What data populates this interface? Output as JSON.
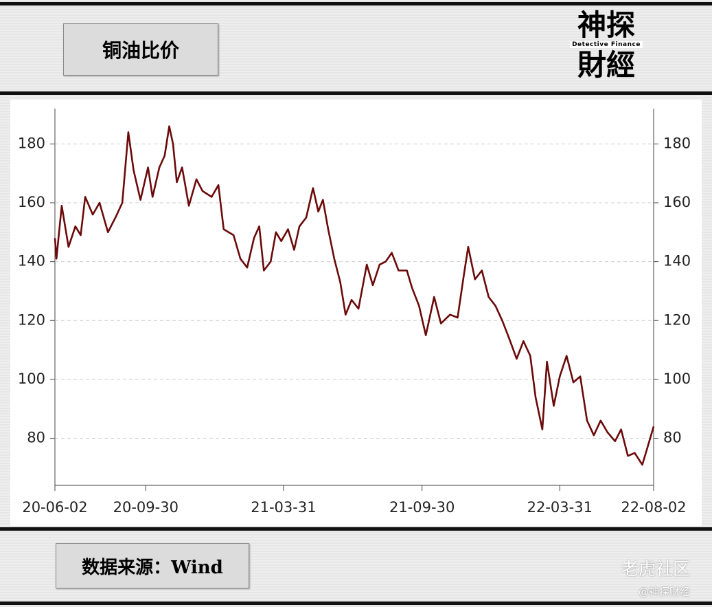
{
  "header": {
    "title": "铜油比价"
  },
  "logo": {
    "top": "神探",
    "bottom": "財經",
    "subtitle": "Detective Finance"
  },
  "chart_data": {
    "type": "line",
    "x": [
      "20-06-02",
      "20-06-04",
      "20-06-11",
      "20-06-20",
      "20-06-29",
      "20-07-06",
      "20-07-12",
      "20-07-22",
      "20-07-31",
      "20-08-11",
      "20-08-21",
      "20-08-30",
      "20-09-07",
      "20-09-14",
      "20-09-23",
      "20-10-03",
      "20-10-09",
      "20-10-18",
      "20-10-25",
      "20-10-31",
      "20-11-05",
      "20-11-10",
      "20-11-17",
      "20-11-26",
      "20-12-06",
      "20-12-14",
      "20-12-26",
      "21-01-04",
      "21-01-11",
      "21-01-24",
      "21-02-02",
      "21-02-11",
      "21-02-20",
      "21-02-27",
      "21-03-05",
      "21-03-14",
      "21-03-21",
      "21-03-28",
      "21-04-06",
      "21-04-14",
      "21-04-21",
      "21-04-30",
      "21-05-09",
      "21-05-16",
      "21-05-22",
      "21-05-29",
      "21-06-06",
      "21-06-14",
      "21-06-21",
      "21-06-29",
      "21-07-08",
      "21-07-19",
      "21-07-27",
      "21-08-05",
      "21-08-13",
      "21-08-21",
      "21-08-30",
      "21-09-10",
      "21-09-17",
      "21-09-26",
      "21-10-05",
      "21-10-16",
      "21-10-25",
      "21-11-06",
      "21-11-16",
      "21-11-24",
      "21-11-30",
      "21-12-09",
      "21-12-18",
      "21-12-27",
      "22-01-05",
      "22-01-14",
      "22-01-23",
      "22-02-02",
      "22-02-11",
      "22-02-20",
      "22-02-27",
      "22-03-08",
      "22-03-14",
      "22-03-23",
      "22-03-31",
      "22-04-09",
      "22-04-18",
      "22-04-27",
      "22-05-06",
      "22-05-15",
      "22-05-24",
      "22-06-02",
      "22-06-12",
      "22-06-20",
      "22-06-29",
      "22-07-08",
      "22-07-18",
      "22-07-25",
      "22-08-02"
    ],
    "series": [
      {
        "color": "#6b0a0a",
        "values": [
          148,
          141,
          159,
          145,
          152,
          149,
          162,
          156,
          160,
          150,
          155,
          160,
          184,
          171,
          161,
          172,
          162,
          172,
          176,
          186,
          180,
          167,
          172,
          159,
          168,
          164,
          162,
          166,
          151,
          149,
          141,
          138,
          148,
          152,
          137,
          140,
          150,
          147,
          151,
          144,
          152,
          155,
          165,
          157,
          161,
          151,
          141,
          133,
          122,
          127,
          124,
          139,
          132,
          139,
          140,
          143,
          137,
          137,
          131,
          125,
          115,
          128,
          119,
          122,
          121,
          135,
          145,
          134,
          137,
          128,
          125,
          120,
          114,
          107,
          113,
          108,
          94,
          83,
          106,
          91,
          101,
          108,
          99,
          101,
          86,
          81,
          86,
          82,
          79,
          83,
          74,
          75,
          71,
          77,
          84
        ]
      }
    ],
    "xlim": [
      "20-06-02",
      "22-08-02"
    ],
    "xticks": [
      "20-06-02",
      "20-09-30",
      "21-03-31",
      "21-09-30",
      "22-03-31",
      "22-08-02"
    ],
    "ylim": [
      64,
      192
    ],
    "yticks": [
      80,
      100,
      120,
      140,
      160,
      180
    ],
    "grid": true
  },
  "footer": {
    "source": "数据来源：Wind",
    "watermark": "老虎社区",
    "handle": "@神探财经"
  }
}
